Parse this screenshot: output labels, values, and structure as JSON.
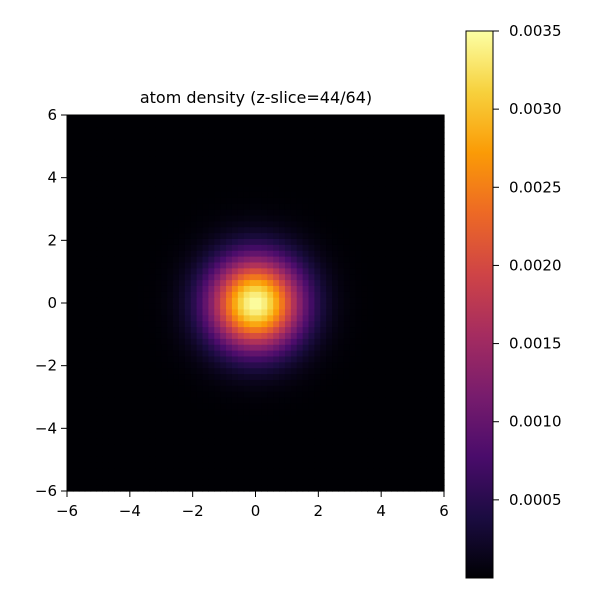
{
  "chart_data": [
    {
      "type": "heatmap",
      "title": "atom density (z-slice=44/64)",
      "xlabel": "",
      "ylabel": "",
      "xlim": [
        -6,
        6
      ],
      "ylim": [
        -6,
        6
      ],
      "xticks": [
        -6,
        -4,
        -2,
        0,
        2,
        4,
        6
      ],
      "yticks": [
        -6,
        -4,
        -2,
        0,
        2,
        4,
        6
      ],
      "xtick_labels": [
        "−6",
        "−4",
        "−2",
        "0",
        "2",
        "4",
        "6"
      ],
      "ytick_labels": [
        "−6",
        "−4",
        "−2",
        "0",
        "2",
        "4",
        "6"
      ],
      "grid": false,
      "resolution": 64,
      "colormap": "inferno",
      "field": {
        "shape": "radial gaussian",
        "center": [
          0,
          0
        ],
        "peak_value": 0.0035,
        "sigma": 1.0
      },
      "colorbar": {
        "min": 0.0,
        "max": 0.0035,
        "ticks": [
          0.0005,
          0.001,
          0.0015,
          0.002,
          0.0025,
          0.003,
          0.0035
        ],
        "tick_labels": [
          "0.0005",
          "0.0010",
          "0.0015",
          "0.0020",
          "0.0025",
          "0.0030",
          "0.0035"
        ],
        "placement": "right"
      }
    }
  ],
  "colors": {
    "axis": "#000000",
    "background": "#ffffff",
    "colormap_stops": [
      "#000004",
      "#1b0c41",
      "#4a0c6b",
      "#781c6d",
      "#a52c60",
      "#cf4446",
      "#ed6925",
      "#fb9b06",
      "#f7d13d",
      "#fcffa4"
    ]
  }
}
